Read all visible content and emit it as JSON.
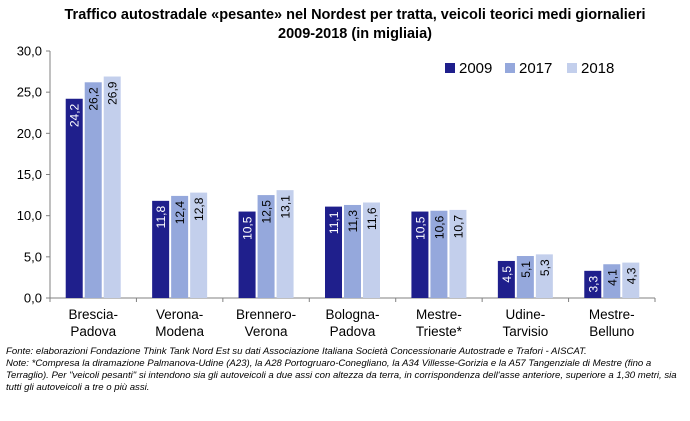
{
  "chart_data": {
    "type": "bar",
    "title": "Traffico autostradale «pesante» nel Nordest per tratta, veicoli teorici medi giornalieri 2009-2018 (in migliaia)",
    "categories": [
      [
        "Brescia-",
        "Padova"
      ],
      [
        "Verona-",
        "Modena"
      ],
      [
        "Brennero-",
        "Verona"
      ],
      [
        "Bologna-",
        "Padova"
      ],
      [
        "Mestre-",
        "Trieste*"
      ],
      [
        "Udine-",
        "Tarvisio"
      ],
      [
        "Mestre-",
        "Belluno"
      ]
    ],
    "series": [
      {
        "name": "2009",
        "color": "#1F1F8C",
        "values": [
          24.2,
          11.8,
          10.5,
          11.1,
          10.5,
          4.5,
          3.3
        ],
        "labels": [
          "24,2",
          "11,8",
          "10,5",
          "11,1",
          "10,5",
          "4,5",
          "3,3"
        ]
      },
      {
        "name": "2017",
        "color": "#95A8DC",
        "values": [
          26.2,
          12.4,
          12.5,
          11.3,
          10.6,
          5.1,
          4.1
        ],
        "labels": [
          "26,2",
          "12,4",
          "12,5",
          "11,3",
          "10,6",
          "5,1",
          "4,1"
        ]
      },
      {
        "name": "2018",
        "color": "#C3CFEC",
        "values": [
          26.9,
          12.8,
          13.1,
          11.6,
          10.7,
          5.3,
          4.3
        ],
        "labels": [
          "26,9",
          "12,8",
          "13,1",
          "11,6",
          "10,7",
          "5,3",
          "4,3"
        ]
      }
    ],
    "ylim": [
      0,
      30
    ],
    "yticks": [
      0,
      5,
      10,
      15,
      20,
      25,
      30
    ],
    "ytick_labels": [
      "0,0",
      "5,0",
      "10,0",
      "15,0",
      "20,0",
      "25,0",
      "30,0"
    ],
    "grid": false,
    "legend_position": "top-right",
    "xlabel": "",
    "ylabel": ""
  },
  "footnotes": {
    "source": "Fonte: elaborazioni Fondazione Think Tank Nord Est su dati Associazione Italiana Società Concessionarie Autostrade e Trafori - AISCAT.",
    "note": "Note: *Compresa la diramazione Palmanova-Udine (A23), la A28 Portogruaro-Conegliano, la A34 Villesse-Gorizia e la A57 Tangenziale di Mestre (fino a Terraglio). Per \"veicoli pesanti\" si intendono sia gli autoveicoli a due assi con altezza da terra, in corrispondenza dell'asse anteriore, superiore a 1,30 metri, sia tutti gli autoveicoli a tre o più assi."
  }
}
